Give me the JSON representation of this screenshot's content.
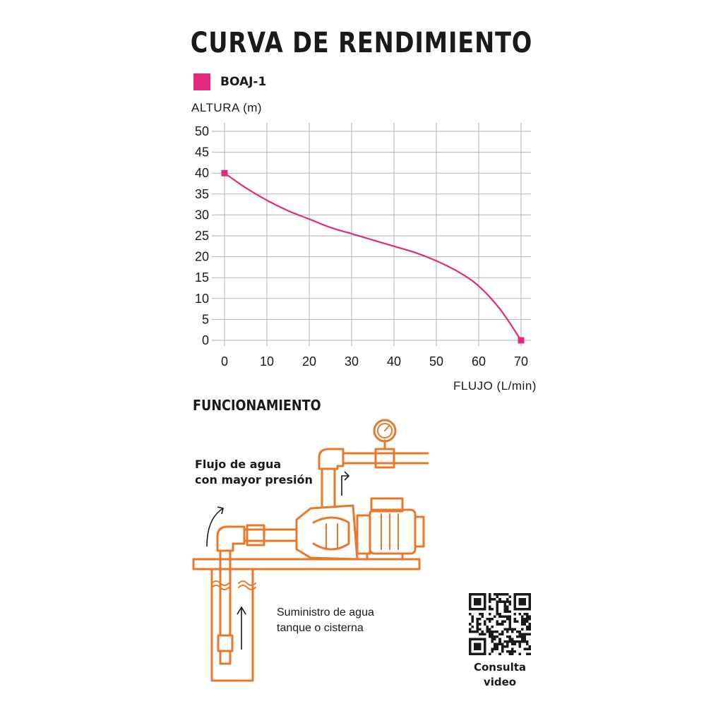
{
  "title": "CURVA DE RENDIMIENTO",
  "legend": {
    "label": "BOAJ-1",
    "color": "#e3297e"
  },
  "chart_data": {
    "type": "line",
    "title": "CURVA DE RENDIMIENTO",
    "xlabel": "FLUJO (L/min)",
    "ylabel": "ALTURA  (m)",
    "xlim": [
      0,
      72
    ],
    "ylim": [
      0,
      50
    ],
    "x_ticks": [
      0,
      10,
      20,
      30,
      40,
      50,
      60,
      70
    ],
    "y_ticks": [
      0,
      5,
      10,
      15,
      20,
      25,
      30,
      35,
      40,
      45,
      50
    ],
    "grid": true,
    "legend_position": "top-left",
    "series": [
      {
        "name": "BOAJ-1",
        "color": "#e3297e",
        "x": [
          0,
          5,
          10,
          15,
          20,
          25,
          30,
          35,
          40,
          45,
          50,
          55,
          60,
          65,
          70
        ],
        "y": [
          40,
          36.5,
          33.5,
          31,
          29,
          27,
          25.5,
          24,
          22.5,
          21,
          19,
          16.5,
          13,
          7.5,
          0
        ]
      }
    ]
  },
  "diagram": {
    "section_title": "FUNCIONAMIENTO",
    "flow_label_line1": "Flujo de agua",
    "flow_label_line2": "con mayor presión",
    "supply_label_line1": "Suministro de agua",
    "supply_label_line2": "tanque o cisterna",
    "line_color": "#e8782a"
  },
  "qr": {
    "caption_line1": "Consulta",
    "caption_line2": "video"
  }
}
